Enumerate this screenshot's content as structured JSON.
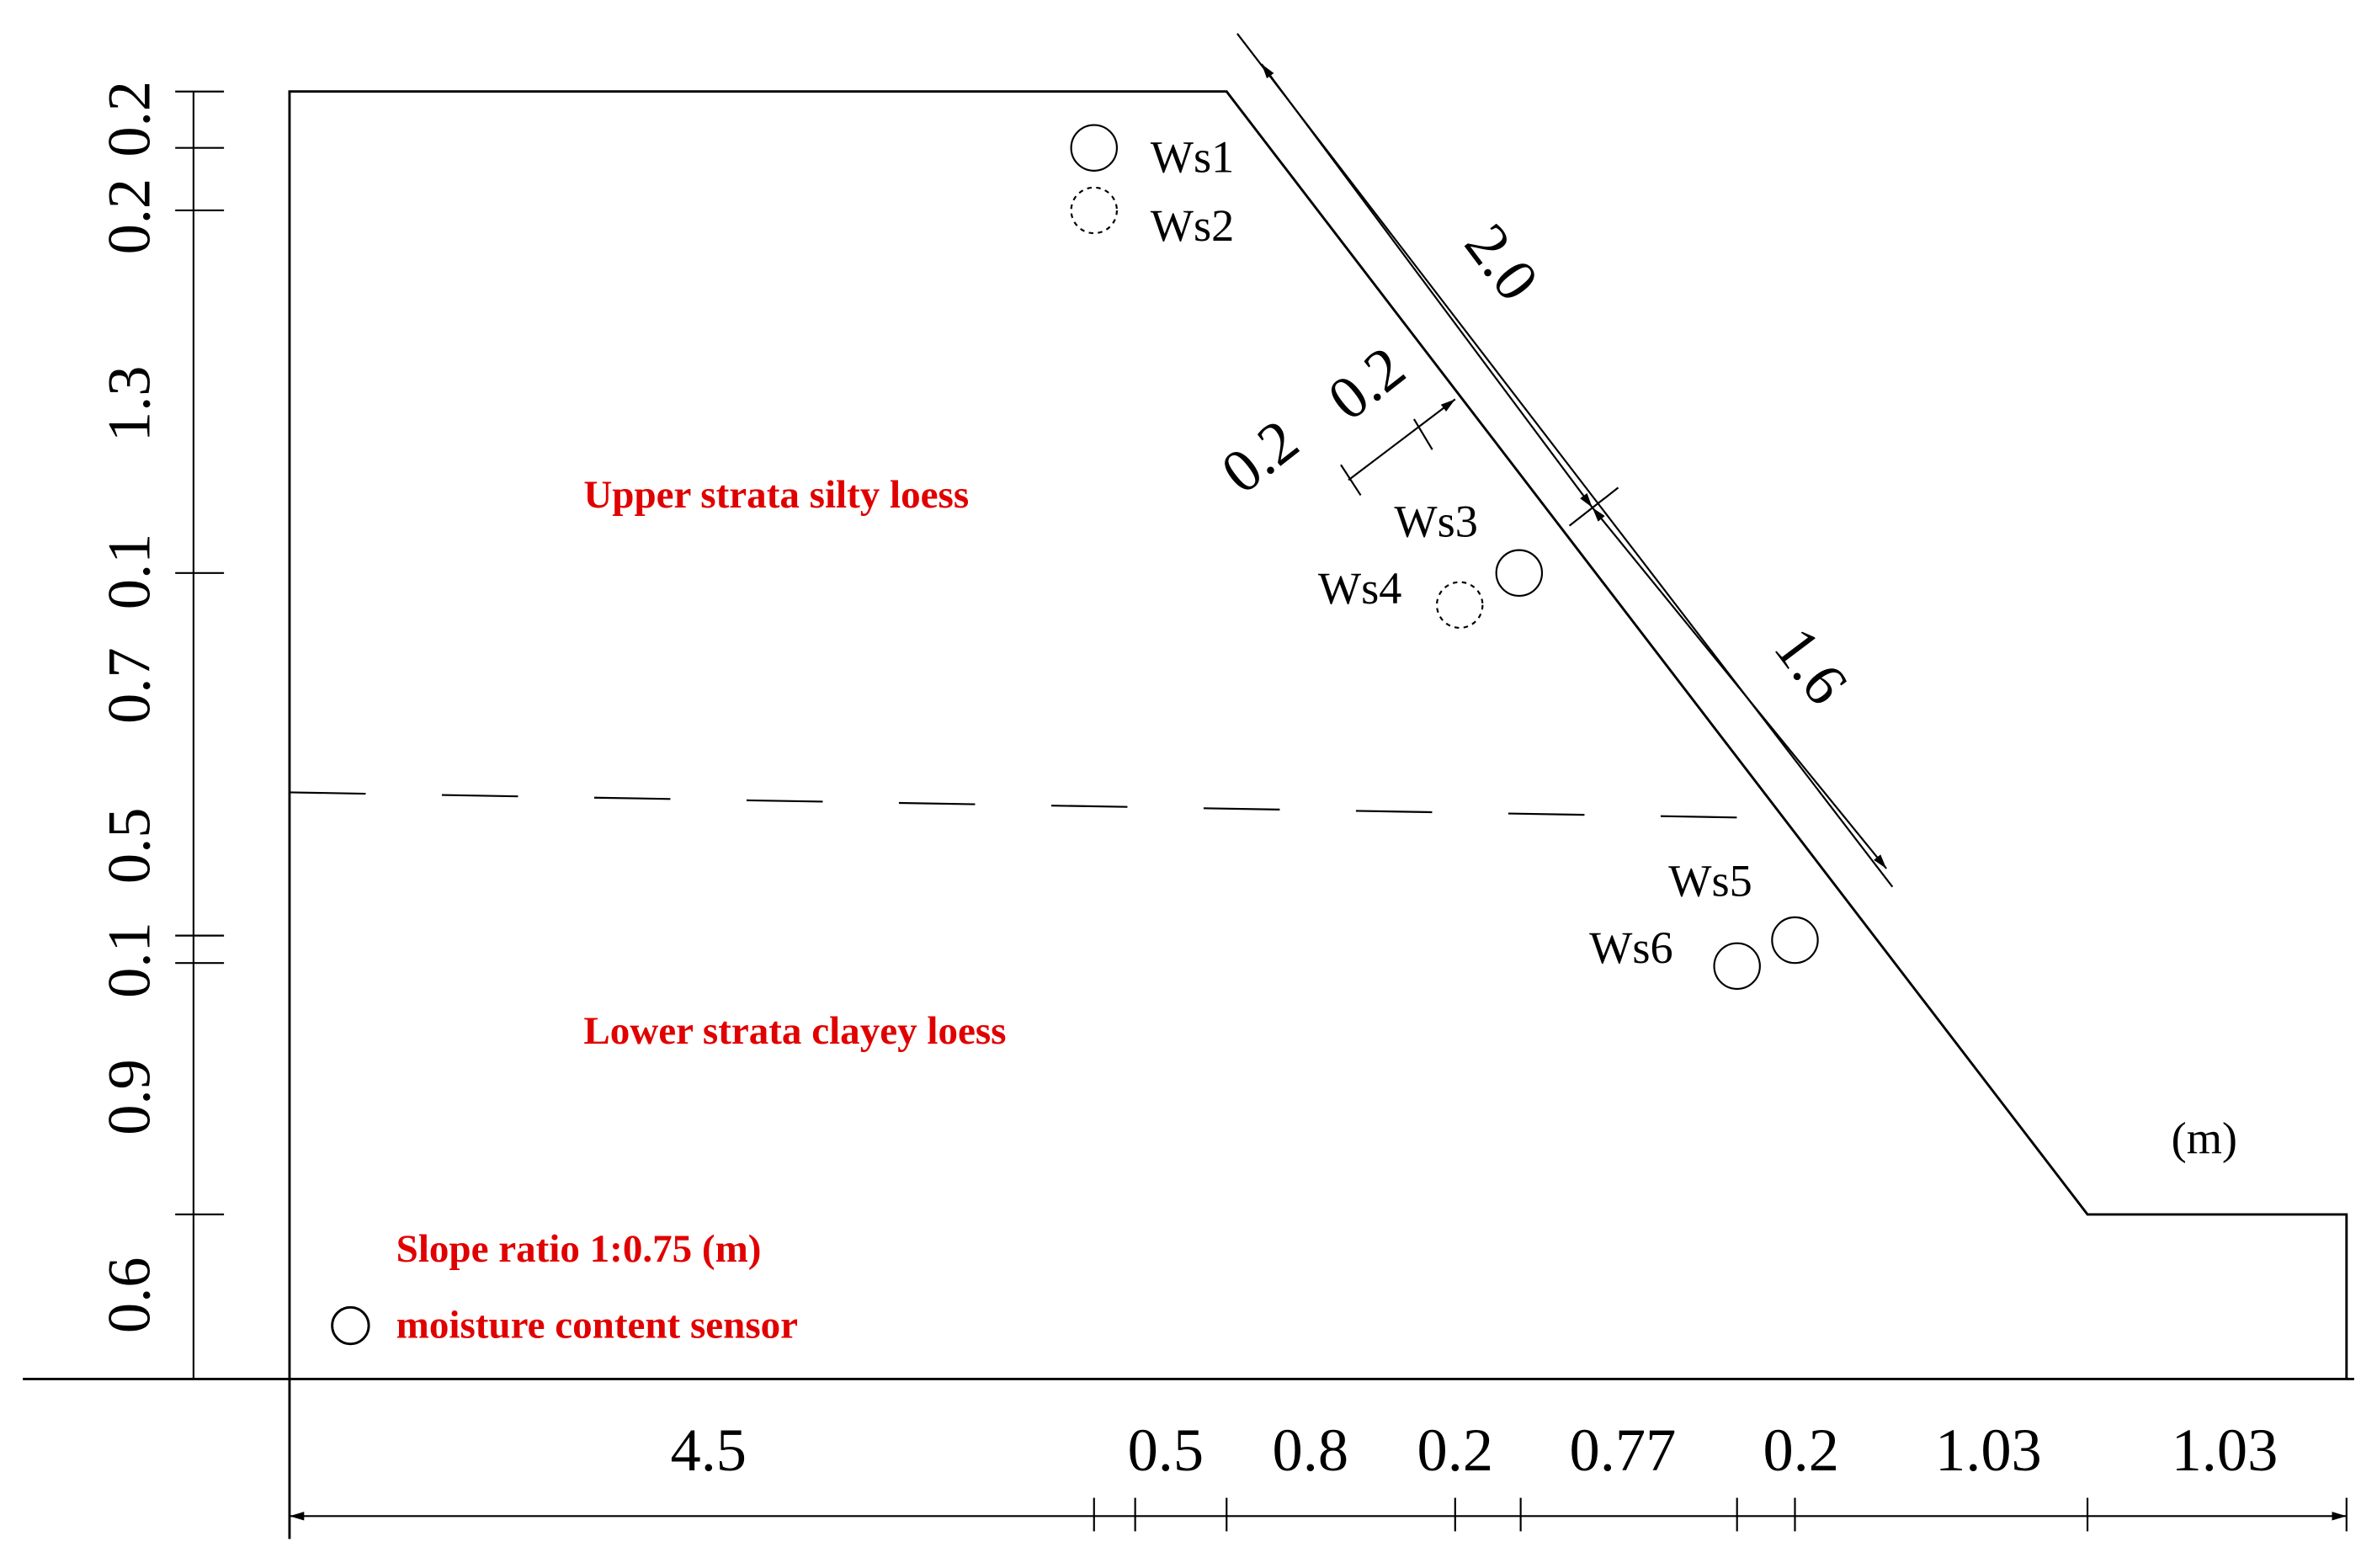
{
  "strata": {
    "upper": "Upper strata silty loess",
    "lower": "Lower strata clayey loess"
  },
  "legend": {
    "slope_ratio": "Slope ratio 1:0.75 (m)",
    "sensor": "moisture content sensor"
  },
  "unit": "(m)",
  "sensors": [
    "Ws1",
    "Ws2",
    "Ws3",
    "Ws4",
    "Ws5",
    "Ws6"
  ],
  "dimensions": {
    "left": [
      "0.2",
      "0.2",
      "1.3",
      "0.1",
      "0.7",
      "0.5",
      "0.1",
      "0.9",
      "0.6"
    ],
    "bottom": [
      "4.5",
      "0.5",
      "0.8",
      "0.2",
      "0.77",
      "0.2",
      "1.03",
      "1.03"
    ],
    "slope": [
      "2.0",
      "1.6",
      "0.2",
      "0.2"
    ]
  }
}
